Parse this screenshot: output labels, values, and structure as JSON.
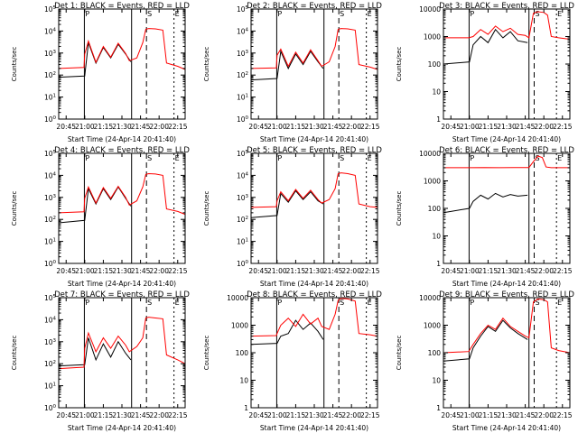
{
  "figure": {
    "xlabel": "Start Time (24-Apr-14 20:41:40)",
    "ylabel": "Counts/sec",
    "x_tick_labels": [
      "20:45",
      "21:00",
      "21:15",
      "21:30",
      "21:45",
      "22:00",
      "22:15"
    ],
    "markers": [
      {
        "label": "P",
        "type": "solid"
      },
      {
        "label": "S",
        "type": "dashed"
      },
      {
        "label": "E",
        "type": "dotted"
      }
    ]
  },
  "colors": {
    "events": "#000000",
    "lld": "#ff0000"
  },
  "chart_data": [
    {
      "type": "line",
      "title": "Det 1: BLACK = Events, RED = LLD",
      "ylog": true,
      "ylim": [
        1,
        100000
      ],
      "y_tick_labels": [
        "10^0",
        "10^1",
        "10^2",
        "10^3",
        "10^4",
        "10^5"
      ],
      "xlim": [
        20.65,
        22.35
      ],
      "markers_x": [
        {
          "label": "P",
          "x": 20.995,
          "type": "solid"
        },
        {
          "label": "",
          "x": 21.63,
          "type": "solid"
        },
        {
          "label": "S",
          "x": 21.83,
          "type": "dashed"
        },
        {
          "label": "E",
          "x": 22.2,
          "type": "dotted"
        }
      ],
      "series": [
        {
          "color": "#000000",
          "x": [
            20.65,
            21.0,
            21.05,
            21.15,
            21.25,
            21.35,
            21.45,
            21.55,
            21.62
          ],
          "y": [
            80,
            90,
            3000,
            350,
            1800,
            600,
            2500,
            900,
            400
          ]
        },
        {
          "color": "#ff0000",
          "x": [
            20.65,
            20.99,
            21.0,
            21.05,
            21.15,
            21.25,
            21.35,
            21.45,
            21.55,
            21.6,
            21.7,
            21.78,
            21.82,
            21.86,
            21.95,
            22.05,
            22.1,
            22.25,
            22.35
          ],
          "y": [
            200,
            220,
            900,
            3500,
            380,
            2000,
            650,
            2800,
            950,
            450,
            600,
            3000,
            12000,
            13000,
            12500,
            11000,
            350,
            250,
            180
          ]
        }
      ]
    },
    {
      "type": "line",
      "title": "Det 2: BLACK = Events, RED = LLD",
      "ylog": true,
      "ylim": [
        1,
        100000
      ],
      "y_tick_labels": [
        "10^0",
        "10^1",
        "10^2",
        "10^3",
        "10^4",
        "10^5"
      ],
      "xlim": [
        20.65,
        22.35
      ],
      "markers_x": [
        {
          "label": "P",
          "x": 20.995,
          "type": "solid"
        },
        {
          "label": "",
          "x": 21.63,
          "type": "solid"
        },
        {
          "label": "S",
          "x": 21.83,
          "type": "dashed"
        },
        {
          "label": "E",
          "x": 22.2,
          "type": "dotted"
        }
      ],
      "series": [
        {
          "color": "#000000",
          "x": [
            20.65,
            21.0,
            21.05,
            21.15,
            21.25,
            21.35,
            21.45,
            21.55,
            21.62
          ],
          "y": [
            60,
            70,
            1200,
            200,
            900,
            300,
            1200,
            400,
            200
          ]
        },
        {
          "color": "#ff0000",
          "x": [
            20.65,
            20.99,
            21.0,
            21.05,
            21.15,
            21.25,
            21.35,
            21.45,
            21.55,
            21.6,
            21.7,
            21.78,
            21.82,
            21.86,
            21.95,
            22.05,
            22.1,
            22.25,
            22.35
          ],
          "y": [
            200,
            210,
            800,
            1500,
            250,
            1100,
            350,
            1400,
            450,
            250,
            400,
            2000,
            12000,
            13000,
            12500,
            11000,
            300,
            230,
            180
          ]
        }
      ]
    },
    {
      "type": "line",
      "title": "Det 3: BLACK = Events, RED = LLD",
      "ylog": true,
      "ylim": [
        1,
        10000
      ],
      "y_tick_labels": [
        "1",
        "10",
        "100",
        "1000",
        "10000"
      ],
      "xlim": [
        20.65,
        22.35
      ],
      "markers_x": [
        {
          "label": "P",
          "x": 20.995,
          "type": "solid"
        },
        {
          "label": "",
          "x": 21.8,
          "type": "solid"
        },
        {
          "label": "S",
          "x": 21.87,
          "type": "dashed"
        },
        {
          "label": "E",
          "x": 22.17,
          "type": "dotted"
        }
      ],
      "series": [
        {
          "color": "#000000",
          "x": [
            20.65,
            21.0,
            21.05,
            21.15,
            21.25,
            21.35,
            21.45,
            21.55,
            21.65,
            21.78
          ],
          "y": [
            100,
            120,
            500,
            1000,
            600,
            1800,
            900,
            1500,
            700,
            600
          ]
        },
        {
          "color": "#ff0000",
          "x": [
            20.65,
            20.99,
            21.05,
            21.15,
            21.25,
            21.35,
            21.45,
            21.55,
            21.65,
            21.75,
            21.8,
            21.86,
            21.92,
            22.0,
            22.05,
            22.1,
            22.2,
            22.35
          ],
          "y": [
            900,
            900,
            1000,
            1800,
            1200,
            2400,
            1500,
            2000,
            1200,
            1100,
            900,
            7000,
            8000,
            7500,
            6000,
            1000,
            900,
            800
          ]
        }
      ]
    },
    {
      "type": "line",
      "title": "Det 4: BLACK = Events, RED = LLD",
      "ylog": true,
      "ylim": [
        1,
        100000
      ],
      "y_tick_labels": [
        "10^0",
        "10^1",
        "10^2",
        "10^3",
        "10^4",
        "10^5"
      ],
      "xlim": [
        20.65,
        22.35
      ],
      "markers_x": [
        {
          "label": "P",
          "x": 20.995,
          "type": "solid"
        },
        {
          "label": "",
          "x": 21.63,
          "type": "solid"
        },
        {
          "label": "S",
          "x": 21.83,
          "type": "dashed"
        },
        {
          "label": "E",
          "x": 22.2,
          "type": "dotted"
        }
      ],
      "series": [
        {
          "color": "#000000",
          "x": [
            20.65,
            21.0,
            21.05,
            21.15,
            21.25,
            21.35,
            21.45,
            21.55,
            21.62
          ],
          "y": [
            70,
            90,
            2500,
            500,
            2500,
            800,
            3000,
            900,
            400
          ]
        },
        {
          "color": "#ff0000",
          "x": [
            20.65,
            20.99,
            21.0,
            21.05,
            21.15,
            21.25,
            21.35,
            21.45,
            21.55,
            21.6,
            21.7,
            21.78,
            21.82,
            21.86,
            21.95,
            22.05,
            22.1,
            22.25,
            22.35
          ],
          "y": [
            200,
            220,
            900,
            3000,
            550,
            2800,
            900,
            3200,
            1000,
            450,
            700,
            3000,
            11000,
            12000,
            11500,
            10000,
            300,
            230,
            170
          ]
        }
      ]
    },
    {
      "type": "line",
      "title": "Det 5: BLACK = Events, RED = LLD",
      "ylog": true,
      "ylim": [
        1,
        100000
      ],
      "y_tick_labels": [
        "10^0",
        "10^1",
        "10^2",
        "10^3",
        "10^4",
        "10^5"
      ],
      "xlim": [
        20.65,
        22.35
      ],
      "markers_x": [
        {
          "label": "P",
          "x": 20.995,
          "type": "solid"
        },
        {
          "label": "",
          "x": 21.63,
          "type": "solid"
        },
        {
          "label": "S",
          "x": 21.83,
          "type": "dashed"
        },
        {
          "label": "E",
          "x": 22.2,
          "type": "dotted"
        }
      ],
      "series": [
        {
          "color": "#000000",
          "x": [
            20.65,
            21.0,
            21.05,
            21.15,
            21.25,
            21.35,
            21.45,
            21.55,
            21.62
          ],
          "y": [
            120,
            150,
            1500,
            600,
            2000,
            800,
            1800,
            700,
            500
          ]
        },
        {
          "color": "#ff0000",
          "x": [
            20.65,
            20.99,
            21.0,
            21.05,
            21.15,
            21.25,
            21.35,
            21.45,
            21.55,
            21.6,
            21.7,
            21.78,
            21.82,
            21.86,
            21.95,
            22.05,
            22.1,
            22.25,
            22.35
          ],
          "y": [
            350,
            380,
            700,
            1800,
            700,
            2300,
            900,
            2100,
            800,
            550,
            800,
            2500,
            12000,
            13000,
            12000,
            10000,
            500,
            380,
            350
          ]
        }
      ]
    },
    {
      "type": "line",
      "title": "Det 6: BLACK = Events, RED = LLD",
      "ylog": true,
      "ylim": [
        1,
        10000
      ],
      "y_tick_labels": [
        "1",
        "10",
        "100",
        "1000",
        "10000"
      ],
      "xlim": [
        20.65,
        22.35
      ],
      "markers_x": [
        {
          "label": "P",
          "x": 20.995,
          "type": "solid"
        },
        {
          "label": "",
          "x": 21.8,
          "type": "solid"
        },
        {
          "label": "S",
          "x": 21.87,
          "type": "dashed"
        },
        {
          "label": "E",
          "x": 22.17,
          "type": "dotted"
        }
      ],
      "series": [
        {
          "color": "#000000",
          "x": [
            20.65,
            21.0,
            21.05,
            21.15,
            21.25,
            21.35,
            21.45,
            21.55,
            21.65,
            21.78
          ],
          "y": [
            70,
            100,
            180,
            300,
            220,
            350,
            260,
            320,
            280,
            300
          ]
        },
        {
          "color": "#ff0000",
          "x": [
            20.65,
            21.0,
            21.2,
            21.4,
            21.6,
            21.8,
            21.86,
            21.92,
            21.98,
            22.03,
            22.1,
            22.2,
            22.35
          ],
          "y": [
            3000,
            3000,
            3050,
            3000,
            3050,
            3050,
            5000,
            8000,
            7000,
            3200,
            3000,
            3000,
            3000
          ]
        }
      ]
    },
    {
      "type": "line",
      "title": "Det 7: BLACK = Events, RED = LLD",
      "ylog": true,
      "ylim": [
        1,
        100000
      ],
      "y_tick_labels": [
        "10^0",
        "10^1",
        "10^2",
        "10^3",
        "10^4",
        "10^5"
      ],
      "xlim": [
        20.65,
        22.35
      ],
      "markers_x": [
        {
          "label": "P",
          "x": 20.995,
          "type": "solid"
        },
        {
          "label": "",
          "x": 21.63,
          "type": "solid"
        },
        {
          "label": "S",
          "x": 21.83,
          "type": "dashed"
        },
        {
          "label": "E",
          "x": 22.2,
          "type": "dotted"
        }
      ],
      "series": [
        {
          "color": "#000000",
          "x": [
            20.65,
            21.0,
            21.05,
            21.15,
            21.25,
            21.35,
            21.45,
            21.55,
            21.62
          ],
          "y": [
            80,
            90,
            1500,
            150,
            800,
            200,
            1000,
            300,
            150
          ]
        },
        {
          "color": "#ff0000",
          "x": [
            20.65,
            20.99,
            21.0,
            21.05,
            21.15,
            21.25,
            21.35,
            21.45,
            21.55,
            21.6,
            21.7,
            21.78,
            21.82,
            21.86,
            21.95,
            22.05,
            22.1,
            22.25,
            22.35
          ],
          "y": [
            60,
            70,
            500,
            2500,
            350,
            1500,
            500,
            1800,
            700,
            350,
            600,
            1500,
            12000,
            13000,
            12000,
            11000,
            250,
            150,
            100
          ]
        }
      ]
    },
    {
      "type": "line",
      "title": "Det 8: BLACK = Events, RED = LLD",
      "ylog": true,
      "ylim": [
        1,
        10000
      ],
      "y_tick_labels": [
        "1",
        "10",
        "100",
        "1000",
        "10000"
      ],
      "xlim": [
        20.65,
        22.35
      ],
      "markers_x": [
        {
          "label": "P",
          "x": 20.995,
          "type": "solid"
        },
        {
          "label": "",
          "x": 21.63,
          "type": "solid"
        },
        {
          "label": "S",
          "x": 21.83,
          "type": "dashed"
        },
        {
          "label": "E",
          "x": 22.2,
          "type": "dotted"
        }
      ],
      "series": [
        {
          "color": "#000000",
          "x": [
            20.65,
            21.0,
            21.05,
            21.15,
            21.25,
            21.35,
            21.45,
            21.55,
            21.62
          ],
          "y": [
            200,
            220,
            400,
            500,
            1500,
            700,
            1200,
            600,
            300
          ]
        },
        {
          "color": "#ff0000",
          "x": [
            20.65,
            20.99,
            21.0,
            21.05,
            21.15,
            21.25,
            21.35,
            21.45,
            21.55,
            21.6,
            21.7,
            21.78,
            21.82,
            21.86,
            21.95,
            22.05,
            22.1,
            22.25,
            22.35
          ],
          "y": [
            400,
            420,
            500,
            1000,
            1800,
            900,
            2500,
            1100,
            1800,
            900,
            700,
            2500,
            8000,
            9500,
            9000,
            7500,
            500,
            450,
            400
          ]
        }
      ]
    },
    {
      "type": "line",
      "title": "Det 9: BLACK = Events, RED = LLD",
      "ylog": true,
      "ylim": [
        1,
        10000
      ],
      "y_tick_labels": [
        "1",
        "10",
        "100",
        "1000",
        "10000"
      ],
      "xlim": [
        20.65,
        22.35
      ],
      "markers_x": [
        {
          "label": "P",
          "x": 20.995,
          "type": "solid"
        },
        {
          "label": "",
          "x": 21.8,
          "type": "solid"
        },
        {
          "label": "S",
          "x": 21.87,
          "type": "dashed"
        },
        {
          "label": "E",
          "x": 22.17,
          "type": "dotted"
        }
      ],
      "series": [
        {
          "color": "#000000",
          "x": [
            20.65,
            21.0,
            21.05,
            21.15,
            21.25,
            21.35,
            21.45,
            21.55,
            21.65,
            21.78
          ],
          "y": [
            50,
            60,
            150,
            400,
            900,
            600,
            1500,
            800,
            500,
            300
          ]
        },
        {
          "color": "#ff0000",
          "x": [
            20.65,
            20.99,
            21.05,
            21.15,
            21.25,
            21.35,
            21.45,
            21.55,
            21.65,
            21.75,
            21.8,
            21.86,
            21.92,
            22.0,
            22.05,
            22.1,
            22.2,
            22.35
          ],
          "y": [
            100,
            110,
            200,
            500,
            1000,
            700,
            1800,
            900,
            600,
            400,
            350,
            7000,
            9000,
            8500,
            7000,
            150,
            120,
            100
          ]
        }
      ]
    }
  ]
}
